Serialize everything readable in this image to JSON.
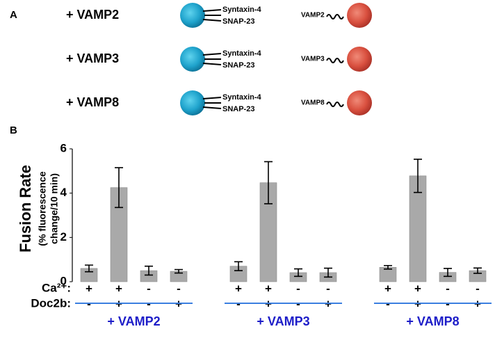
{
  "panel_a": {
    "label": "A",
    "rows": [
      {
        "title": "+ VAMP2",
        "t_snares": [
          "Syntaxin-4",
          "SNAP-23"
        ],
        "v_snare": "VAMP2"
      },
      {
        "title": "+ VAMP3",
        "t_snares": [
          "Syntaxin-4",
          "SNAP-23"
        ],
        "v_snare": "VAMP3"
      },
      {
        "title": "+ VAMP8",
        "t_snares": [
          "Syntaxin-4",
          "SNAP-23"
        ],
        "v_snare": "VAMP8"
      }
    ]
  },
  "chart_data": {
    "type": "bar",
    "panel_label": "B",
    "ylabel": "Fusion Rate",
    "ylabel_sub": [
      "(% fluorescence",
      "change/10 min)"
    ],
    "ylim": [
      0,
      6
    ],
    "yticks": [
      0,
      2,
      4,
      6
    ],
    "groups": [
      "+ VAMP2",
      "+ VAMP3",
      "+ VAMP8"
    ],
    "condition_names": [
      "Ca²⁺:",
      "Doc2b:"
    ],
    "conditions": [
      [
        "+",
        "+",
        "-",
        "-",
        "+",
        "+",
        "-",
        "-",
        "+",
        "+",
        "-",
        "-"
      ],
      [
        "-",
        "+",
        "-",
        "+",
        "-",
        "+",
        "-",
        "+",
        "-",
        "+",
        "-",
        "+"
      ]
    ],
    "series": [
      {
        "color": "#a9a9a9",
        "values": [
          0.6,
          4.25,
          0.5,
          0.47,
          0.7,
          4.47,
          0.41,
          0.41,
          0.65,
          4.78,
          0.42,
          0.5
        ],
        "errors": [
          0.15,
          0.9,
          0.2,
          0.08,
          0.2,
          0.95,
          0.17,
          0.2,
          0.08,
          0.75,
          0.18,
          0.12
        ]
      }
    ]
  }
}
